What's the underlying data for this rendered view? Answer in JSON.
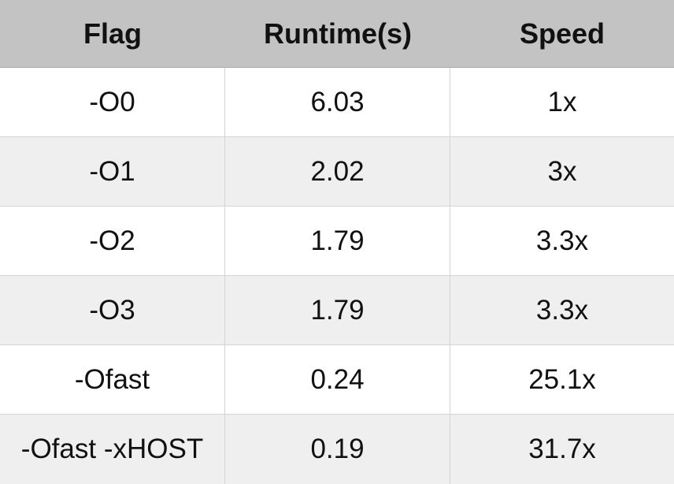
{
  "table": {
    "headers": [
      "Flag",
      "Runtime(s)",
      "Speed"
    ],
    "rows": [
      [
        "-O0",
        "6.03",
        "1x"
      ],
      [
        "-O1",
        "2.02",
        "3x"
      ],
      [
        "-O2",
        "1.79",
        "3.3x"
      ],
      [
        "-O3",
        "1.79",
        "3.3x"
      ],
      [
        "-Ofast",
        "0.24",
        "25.1x"
      ],
      [
        "-Ofast -xHOST",
        "0.19",
        "31.7x"
      ]
    ]
  },
  "colors": {
    "header_bg": "#c3c3c3",
    "row_alt_bg": "#efefef",
    "row_bg": "#ffffff"
  }
}
